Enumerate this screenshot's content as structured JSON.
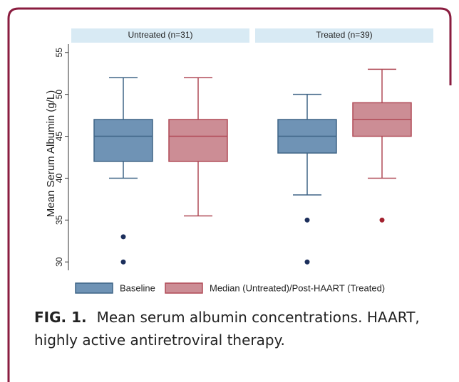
{
  "chart_data": {
    "type": "box",
    "ylabel": "Mean Serum Albumin (g/L)",
    "ylim": [
      29,
      56
    ],
    "yticks": [
      30,
      35,
      40,
      45,
      50,
      55
    ],
    "series": [
      {
        "name": "Baseline",
        "color": "#6f93b5",
        "stroke": "#3f6486",
        "outlier_color": "#1c2f5c"
      },
      {
        "name": "Median (Untreated)/Post-HAART (Treated)",
        "color": "#cc8d95",
        "stroke": "#b04a57",
        "outlier_color": "#a3222f"
      }
    ],
    "panels": [
      {
        "title": "Untreated (n=31)",
        "boxes": [
          {
            "min": 40,
            "q1": 42,
            "median": 45,
            "q3": 47,
            "max": 52,
            "outliers": [
              33,
              30
            ]
          },
          {
            "min": 35.5,
            "q1": 42,
            "median": 45,
            "q3": 47,
            "max": 52,
            "outliers": []
          }
        ]
      },
      {
        "title": "Treated (n=39)",
        "boxes": [
          {
            "min": 38,
            "q1": 43,
            "median": 45,
            "q3": 47,
            "max": 50,
            "outliers": [
              35,
              30
            ]
          },
          {
            "min": 40,
            "q1": 45,
            "median": 47,
            "q3": 49,
            "max": 53,
            "outliers": [
              35
            ]
          }
        ]
      }
    ]
  },
  "caption": {
    "label": "FIG. 1.",
    "text": "Mean serum albumin concentrations. HAART, highly active antiretroviral therapy."
  }
}
